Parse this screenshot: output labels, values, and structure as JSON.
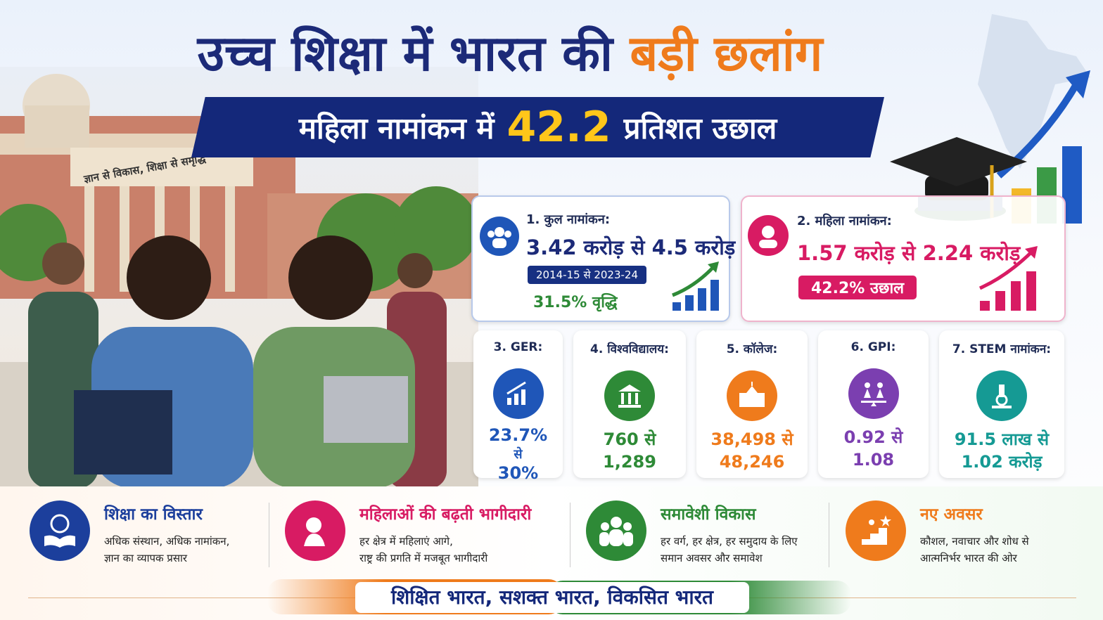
{
  "header": {
    "title_part1": "उच्च शिक्षा में भारत की",
    "title_part2": "बड़ी छलांग",
    "banner_part1": "महिला नामांकन में",
    "banner_number": "42.2",
    "banner_part2": "प्रतिशत उछाल"
  },
  "photo": {
    "sign": "ज्ञान से विकास, शिक्षा से समृद्धि"
  },
  "main_cards": [
    {
      "label": "1. कुल नामांकन:",
      "value": "3.42 करोड़ से 4.5 करोड़",
      "period": "2014-15 से 2023-24",
      "note": "31.5% वृद्धि"
    },
    {
      "label": "2. महिला नामांकन:",
      "value": "1.57 करोड़ से 2.24 करोड़",
      "note": "42.2% उछाल"
    }
  ],
  "small_cards": [
    {
      "label": "3. GER:",
      "value_lines": [
        "23.7%",
        "से",
        "30%"
      ]
    },
    {
      "label": "4. विश्वविद्यालय:",
      "value_lines": [
        "760 से",
        "1,289"
      ]
    },
    {
      "label": "5. कॉलेज:",
      "value_lines": [
        "38,498 से",
        "48,246"
      ]
    },
    {
      "label": "6. GPI:",
      "value_lines": [
        "0.92 से",
        "1.08"
      ]
    },
    {
      "label": "7. STEM नामांकन:",
      "value_lines": [
        "91.5 लाख से",
        "1.02 करोड़"
      ]
    }
  ],
  "highlights": [
    {
      "title": "शिक्षा का विस्तार",
      "lines": [
        "अधिक संस्थान, अधिक नामांकन,",
        "ज्ञान का व्यापक प्रसार"
      ]
    },
    {
      "title": "महिलाओं की बढ़ती भागीदारी",
      "lines": [
        "हर क्षेत्र में महिलाएं आगे,",
        "राष्ट्र की प्रगति में मजबूत भागीदारी"
      ]
    },
    {
      "title": "समावेशी विकास",
      "lines": [
        "हर वर्ग, हर क्षेत्र, हर समुदाय के लिए",
        "समान अवसर और समावेश"
      ]
    },
    {
      "title": "नए अवसर",
      "lines": [
        "कौशल, नवाचार और शोध से",
        "आत्मनिर्भर भारत की ओर"
      ]
    }
  ],
  "footer": {
    "slogan": "शिक्षित भारत, सशक्त भारत, विकसित भारत"
  }
}
